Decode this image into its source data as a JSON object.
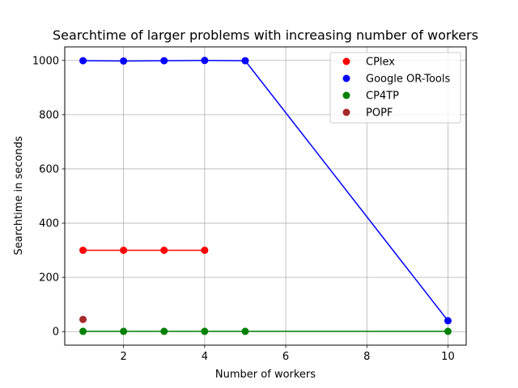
{
  "chart_data": {
    "type": "line",
    "title": "Searchtime of larger problems with increasing number of workers",
    "xlabel": "Number of workers",
    "ylabel": "Searchtime in seconds",
    "xlim": [
      0.55,
      10.45
    ],
    "ylim": [
      -50,
      1050
    ],
    "xticks": [
      2,
      4,
      6,
      8,
      10
    ],
    "yticks": [
      0,
      200,
      400,
      600,
      800,
      1000
    ],
    "grid": true,
    "legend_position": "top-right",
    "series": [
      {
        "name": "CPlex",
        "color": "#ff0000",
        "x": [
          1,
          2,
          3,
          4
        ],
        "y": [
          300,
          300,
          300,
          300
        ]
      },
      {
        "name": "Google OR-Tools",
        "color": "#0000ff",
        "x": [
          1,
          2,
          3,
          4,
          5,
          10
        ],
        "y": [
          999,
          998,
          999,
          1000,
          999,
          40
        ]
      },
      {
        "name": "CP4TP",
        "color": "#008000",
        "x": [
          1,
          2,
          3,
          4,
          5,
          10
        ],
        "y": [
          1,
          1,
          1,
          1,
          1,
          1
        ]
      },
      {
        "name": "POPF",
        "color": "#a52a2a",
        "x": [
          1
        ],
        "y": [
          45
        ]
      }
    ]
  }
}
